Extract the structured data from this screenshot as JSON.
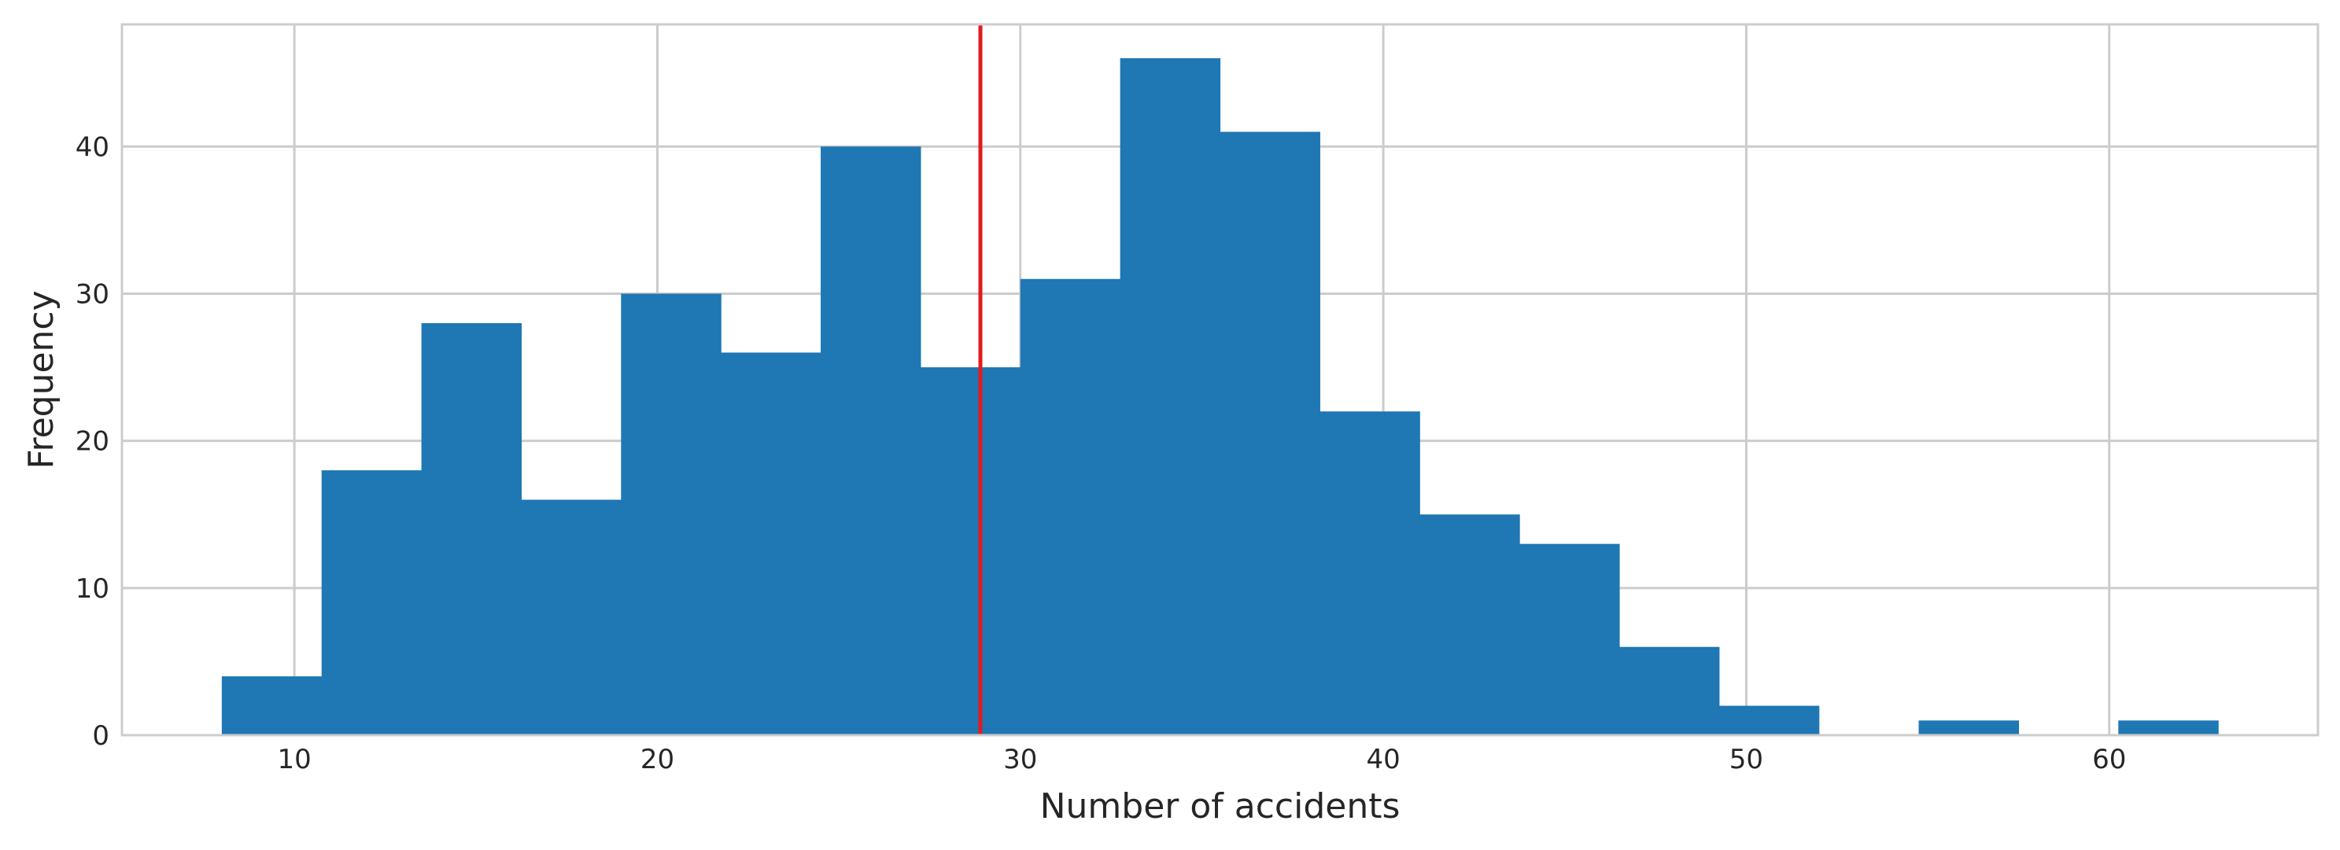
{
  "chart_data": {
    "type": "bar",
    "subtype": "histogram",
    "xlabel": "Number of accidents",
    "ylabel": "Frequency",
    "xlim": [
      5.25,
      65.75
    ],
    "ylim": [
      0,
      48.3
    ],
    "xticks": [
      10,
      20,
      30,
      40,
      50,
      60
    ],
    "yticks": [
      0,
      10,
      20,
      30,
      40
    ],
    "grid": true,
    "bins": [
      {
        "x0": 8.0,
        "x1": 10.75,
        "count": 4
      },
      {
        "x0": 10.75,
        "x1": 13.5,
        "count": 18
      },
      {
        "x0": 13.5,
        "x1": 16.25,
        "count": 28
      },
      {
        "x0": 16.25,
        "x1": 19.0,
        "count": 16
      },
      {
        "x0": 19.0,
        "x1": 21.75,
        "count": 30
      },
      {
        "x0": 21.75,
        "x1": 24.5,
        "count": 26
      },
      {
        "x0": 24.5,
        "x1": 27.25,
        "count": 40
      },
      {
        "x0": 27.25,
        "x1": 30.0,
        "count": 25
      },
      {
        "x0": 30.0,
        "x1": 32.75,
        "count": 31
      },
      {
        "x0": 32.75,
        "x1": 35.5,
        "count": 46
      },
      {
        "x0": 35.5,
        "x1": 38.25,
        "count": 41
      },
      {
        "x0": 38.25,
        "x1": 41.0,
        "count": 22
      },
      {
        "x0": 41.0,
        "x1": 43.75,
        "count": 15
      },
      {
        "x0": 43.75,
        "x1": 46.5,
        "count": 13
      },
      {
        "x0": 46.5,
        "x1": 49.25,
        "count": 6
      },
      {
        "x0": 49.25,
        "x1": 52.0,
        "count": 2
      },
      {
        "x0": 52.0,
        "x1": 54.75,
        "count": 0
      },
      {
        "x0": 54.75,
        "x1": 57.5,
        "count": 1
      },
      {
        "x0": 57.5,
        "x1": 60.25,
        "count": 0
      },
      {
        "x0": 60.25,
        "x1": 63.0,
        "count": 1
      }
    ],
    "vertical_line": {
      "x": 28.9,
      "color": "#e41a1c"
    },
    "bar_color": "#1f77b4",
    "grid_color": "#cccccc"
  }
}
